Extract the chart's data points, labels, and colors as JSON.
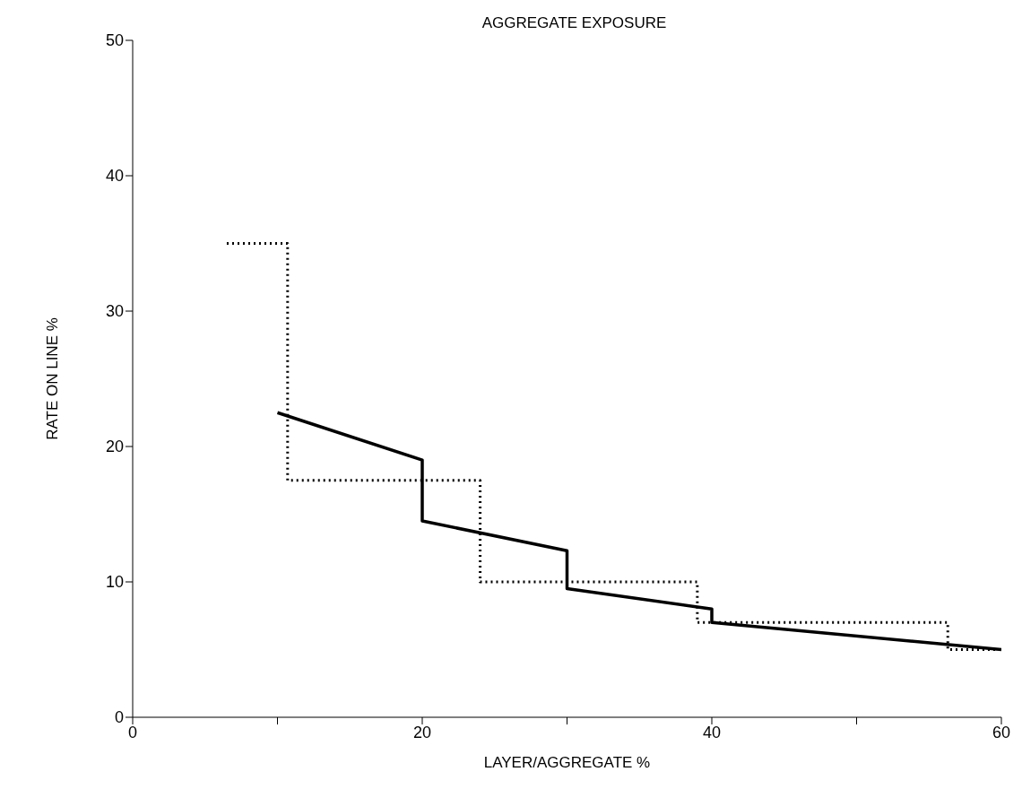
{
  "chart_data": {
    "type": "line",
    "title": "AGGREGATE EXPOSURE",
    "xlabel": "LAYER/AGGREGATE %",
    "ylabel": "RATE ON LINE %",
    "xlim": [
      0,
      60
    ],
    "xticks": [
      0,
      {
        "value": 10,
        "label": null
      },
      20,
      {
        "value": 30,
        "label": null
      },
      40,
      {
        "value": 50,
        "label": null
      },
      60
    ],
    "ylim": [
      0,
      50
    ],
    "yticks": [
      0,
      10,
      20,
      30,
      40,
      50
    ],
    "grid": false,
    "legend": false,
    "marker": "none",
    "series": [
      {
        "color": "#000000",
        "line_style": "dotted",
        "x": [
          6.5,
          10.7,
          10.7,
          24,
          24,
          39,
          39,
          56.3,
          56.3,
          60
        ],
        "values": [
          35,
          35,
          17.5,
          17.5,
          10,
          10,
          7,
          7,
          5,
          5
        ]
      },
      {
        "color": "#000000",
        "line_style": "solid",
        "x": [
          10,
          20,
          20,
          30,
          30,
          40,
          40,
          60
        ],
        "values": [
          22.5,
          19,
          14.5,
          12.3,
          9.5,
          8,
          7,
          5
        ]
      }
    ]
  }
}
